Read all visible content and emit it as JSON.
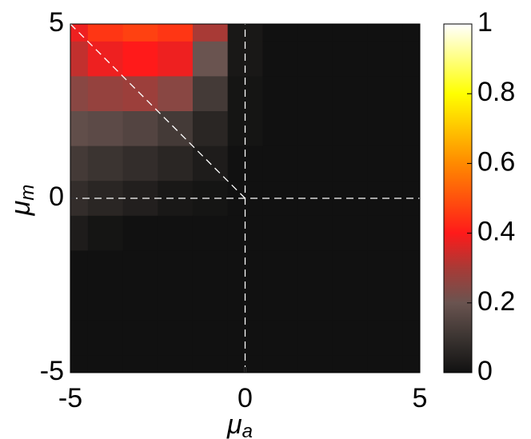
{
  "chart_data": {
    "type": "contour",
    "x": [
      -5,
      -4,
      -3,
      -2,
      -1,
      0,
      1,
      2,
      3,
      4,
      5
    ],
    "y": [
      5,
      4,
      3,
      2,
      1,
      0,
      -1,
      -2,
      -3,
      -4,
      -5
    ],
    "z": [
      [
        0.38,
        0.45,
        0.47,
        0.45,
        0.3,
        0.02,
        0,
        0,
        0,
        0,
        0
      ],
      [
        0.33,
        0.38,
        0.4,
        0.38,
        0.2,
        0.02,
        0,
        0,
        0,
        0,
        0
      ],
      [
        0.25,
        0.27,
        0.28,
        0.25,
        0.12,
        0.01,
        0,
        0,
        0,
        0,
        0
      ],
      [
        0.18,
        0.17,
        0.15,
        0.12,
        0.06,
        0.01,
        0,
        0,
        0,
        0,
        0
      ],
      [
        0.12,
        0.1,
        0.08,
        0.06,
        0.03,
        0,
        0,
        0,
        0,
        0,
        0
      ],
      [
        0.08,
        0.06,
        0.04,
        0.02,
        0.01,
        0,
        0,
        0,
        0,
        0,
        0
      ],
      [
        0.03,
        0.01,
        0,
        0,
        0,
        0,
        0,
        0,
        0,
        0,
        0
      ],
      [
        0,
        0,
        0,
        0,
        0,
        0,
        0,
        0,
        0,
        0,
        0
      ],
      [
        0,
        0,
        0,
        0,
        0,
        0,
        0,
        0,
        0,
        0,
        0
      ],
      [
        0,
        0,
        0,
        0,
        0,
        0,
        0,
        0,
        0,
        0,
        0
      ],
      [
        0,
        0,
        0,
        0,
        0,
        0,
        0,
        0,
        0,
        0,
        0
      ]
    ],
    "xlim": [
      -5,
      5
    ],
    "ylim": [
      -5,
      5
    ],
    "xticks": [
      -5,
      0,
      5
    ],
    "yticks": [
      -5,
      0,
      5
    ],
    "zlim": [
      0,
      1
    ],
    "zticks": [
      0,
      0.2,
      0.4,
      0.6,
      0.8,
      1
    ],
    "colormap": {
      "stops": [
        0,
        0.1,
        0.2,
        0.3,
        0.4,
        0.6,
        0.8,
        1
      ],
      "colors": [
        "#111111",
        "#3b3431",
        "#6a5450",
        "#a83a36",
        "#ff1a1a",
        "#ff8a00",
        "#ffff00",
        "#ffffff"
      ]
    },
    "x_label": {
      "symbol": "μ",
      "subscript": "a"
    },
    "y_label": {
      "symbol": "μ",
      "subscript": "m"
    },
    "guides": [
      {
        "x": [
          -5,
          5
        ],
        "y": [
          0,
          0
        ]
      },
      {
        "x": [
          0,
          0
        ],
        "y": [
          -5,
          5
        ]
      },
      {
        "x": [
          -5,
          0
        ],
        "y": [
          5,
          0
        ]
      }
    ]
  }
}
